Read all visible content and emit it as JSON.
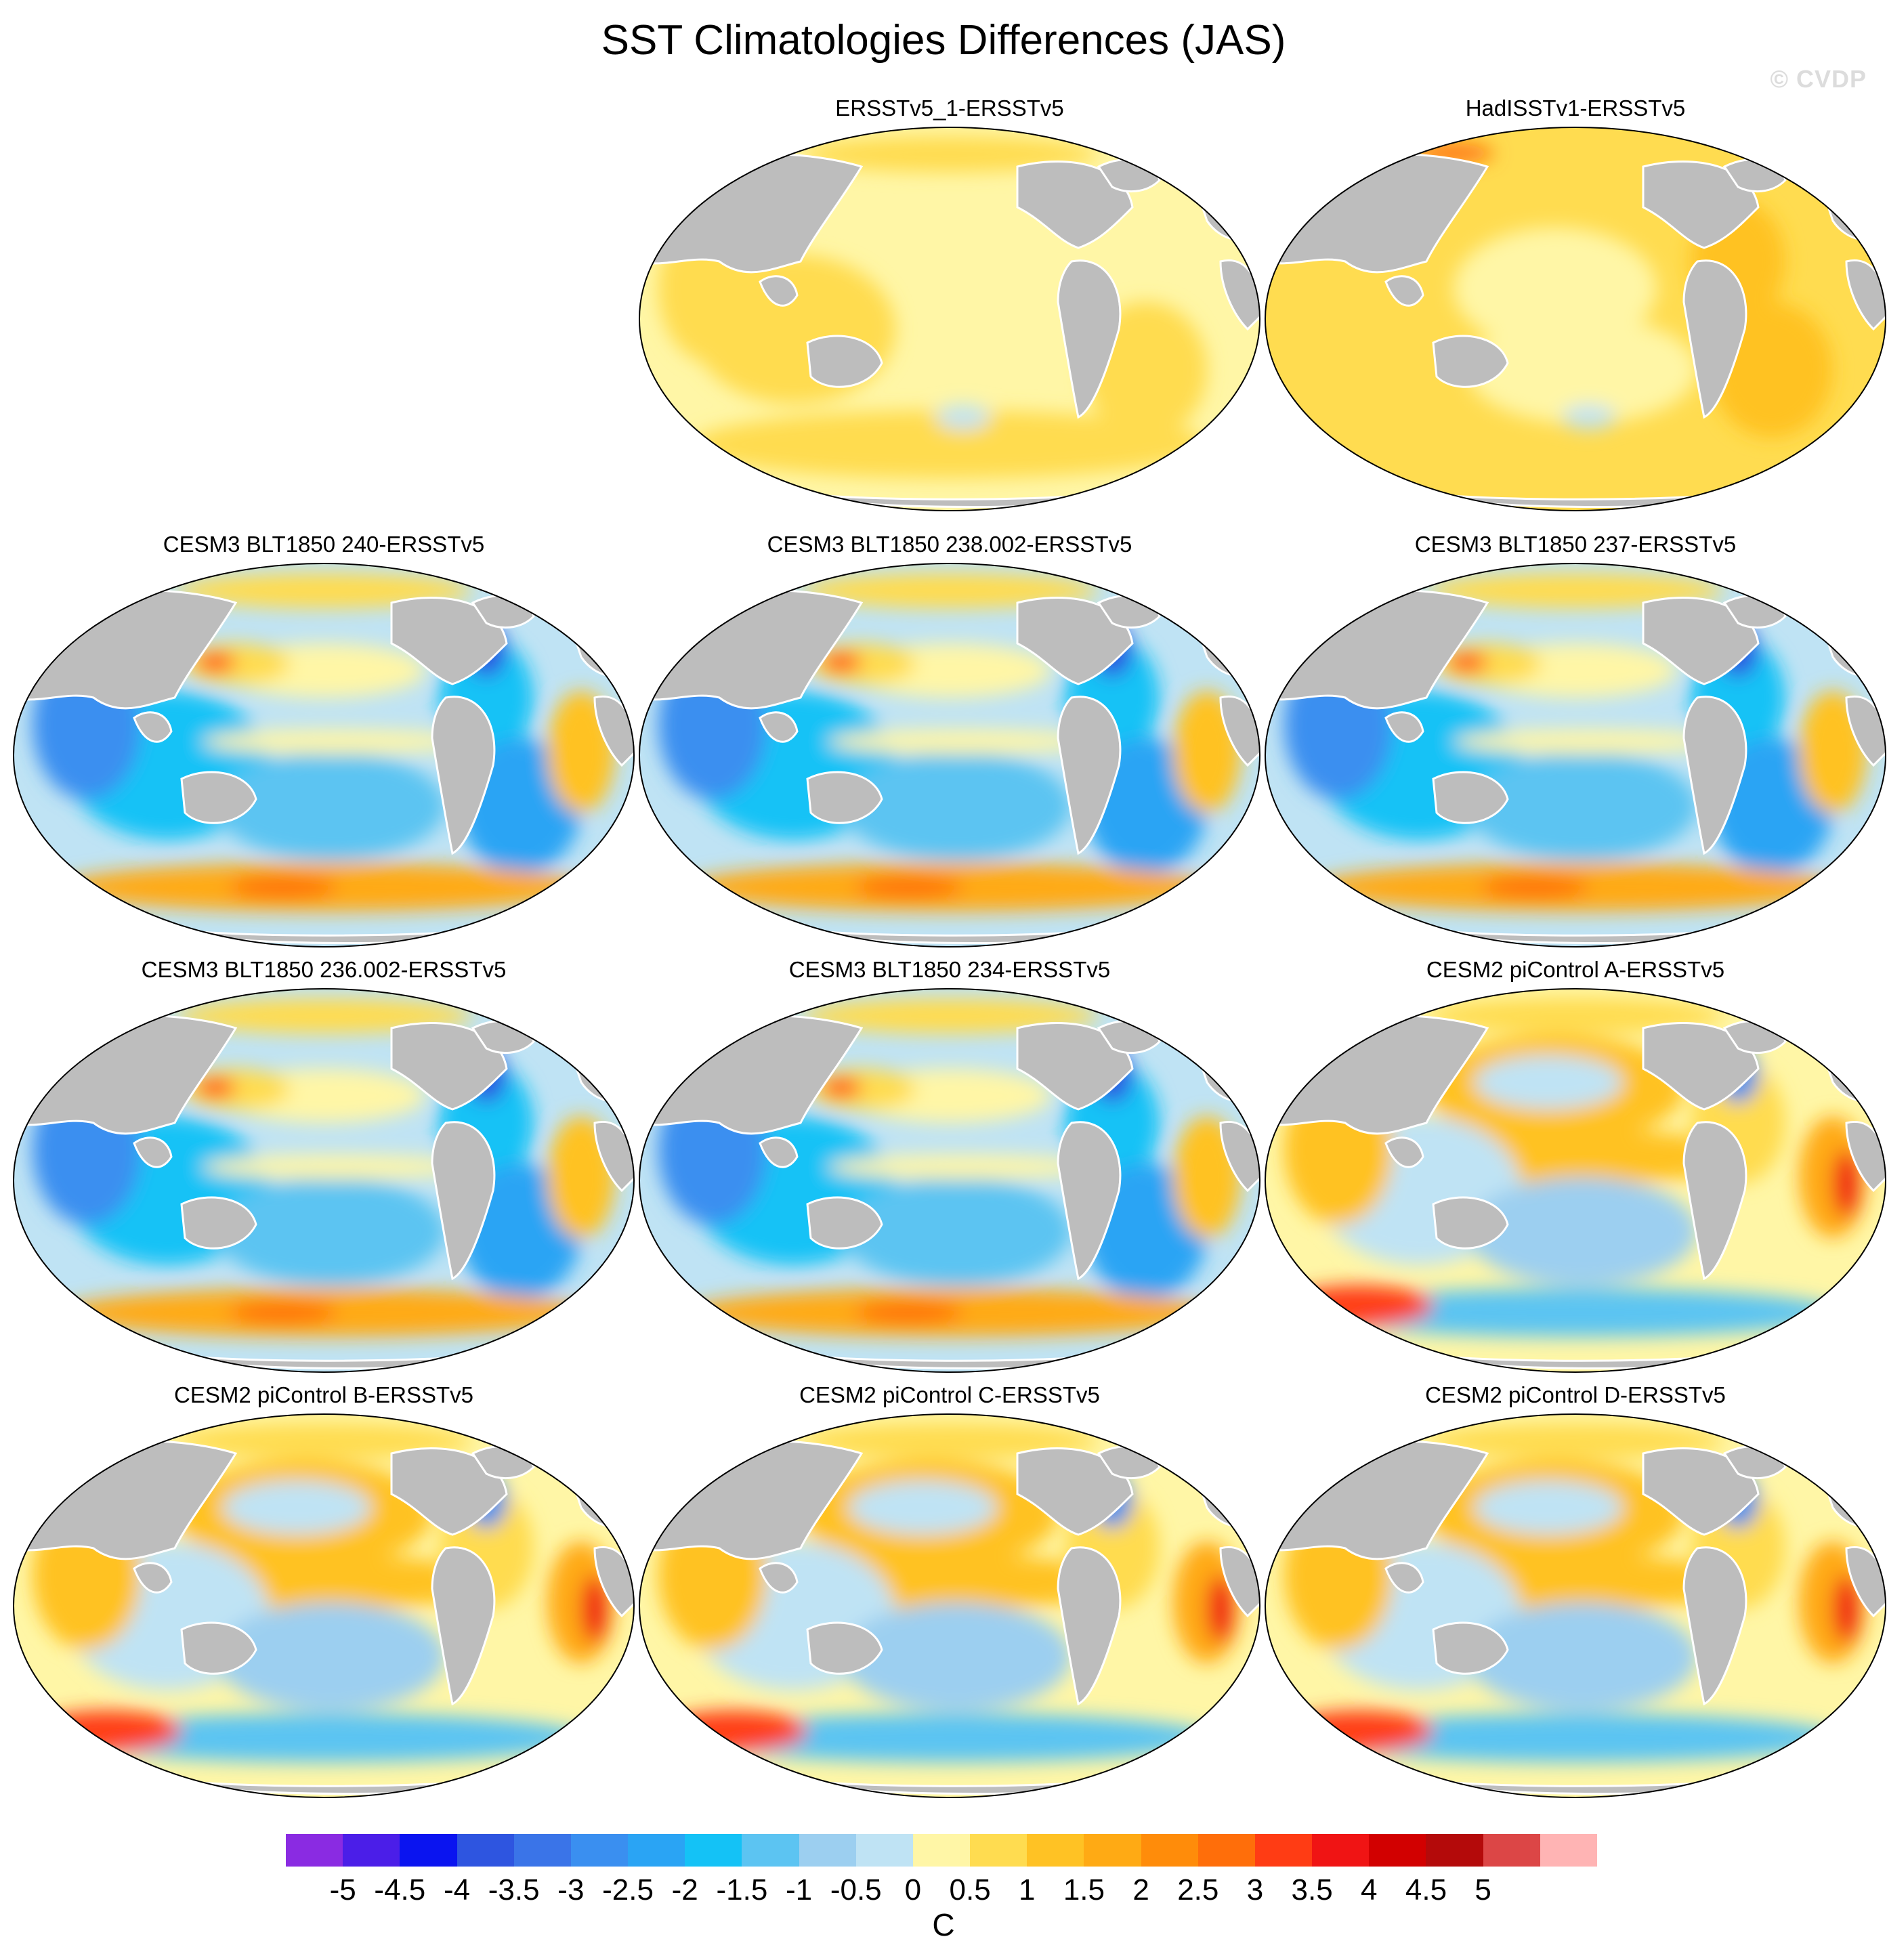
{
  "title": "SST Climatologies Differences (JAS)",
  "watermark": "© CVDP",
  "panels": [
    {
      "title": "ERSSTv5_1-ERSSTv5",
      "style": "obs1"
    },
    {
      "title": "HadISSTv1-ERSSTv5",
      "style": "obs2"
    },
    {
      "title": "CESM3 BLT1850 240-ERSSTv5",
      "style": "cesm3"
    },
    {
      "title": "CESM3 BLT1850 238.002-ERSSTv5",
      "style": "cesm3"
    },
    {
      "title": "CESM3 BLT1850 237-ERSSTv5",
      "style": "cesm3"
    },
    {
      "title": "CESM3 BLT1850 236.002-ERSSTv5",
      "style": "cesm3"
    },
    {
      "title": "CESM3 BLT1850 234-ERSSTv5",
      "style": "cesm3"
    },
    {
      "title": "CESM2 piControl A-ERSSTv5",
      "style": "cesm2"
    },
    {
      "title": "CESM2 piControl B-ERSSTv5",
      "style": "cesm2"
    },
    {
      "title": "CESM2 piControl C-ERSSTv5",
      "style": "cesm2"
    },
    {
      "title": "CESM2 piControl D-ERSSTv5",
      "style": "cesm2"
    }
  ],
  "colorbar": {
    "colors": [
      "#8a2be2",
      "#4b1ee8",
      "#0a14f0",
      "#2e55e0",
      "#3a74e8",
      "#3a8ff0",
      "#2aa4f4",
      "#14c2f6",
      "#5cc4f2",
      "#9ccff0",
      "#bfe3f4",
      "#fff6a6",
      "#ffdc50",
      "#ffc224",
      "#ffaa14",
      "#ff8c0a",
      "#ff6e0a",
      "#ff3c14",
      "#f01414",
      "#d20000",
      "#b40a0a",
      "#dc4646",
      "#ffb4b4"
    ],
    "labels": [
      "-5",
      "-4.5",
      "-4",
      "-3.5",
      "-3",
      "-2.5",
      "-2",
      "-1.5",
      "-1",
      "-0.5",
      "0",
      "0.5",
      "1",
      "1.5",
      "2",
      "2.5",
      "3",
      "3.5",
      "4",
      "4.5",
      "5"
    ],
    "unit": "C"
  }
}
